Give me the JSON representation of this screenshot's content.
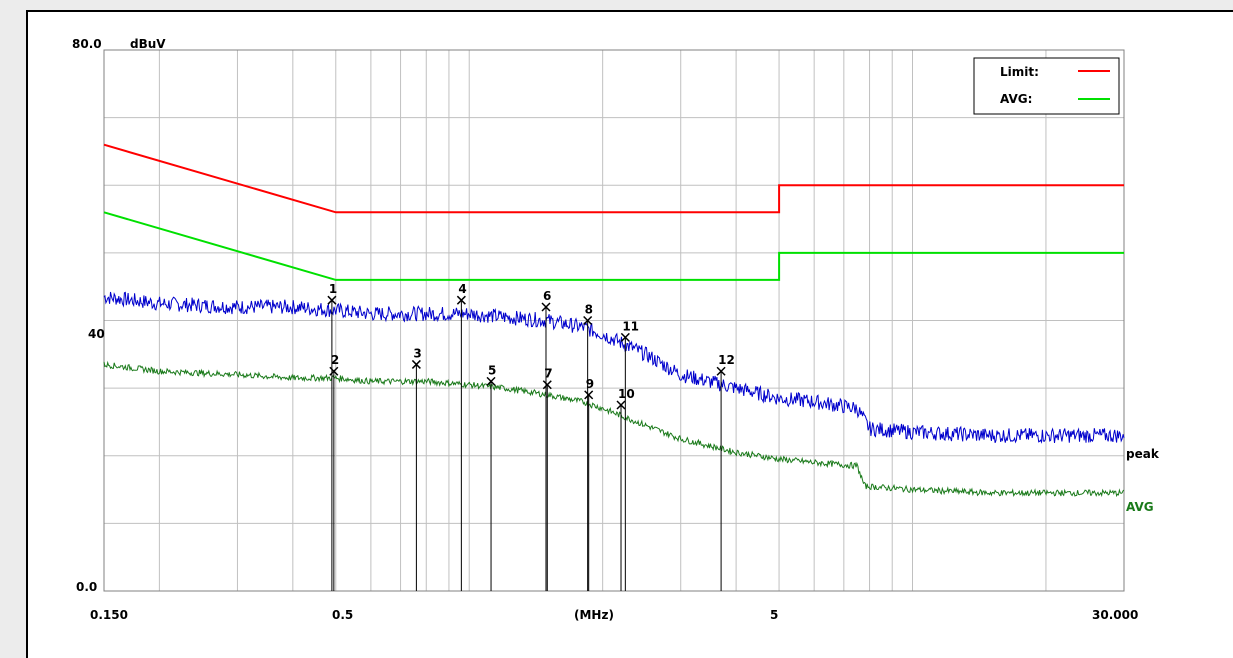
{
  "chart_data": {
    "type": "line",
    "y_unit": "dBuV",
    "x_unit": "(MHz)",
    "x_scale": "log",
    "xlim": [
      0.15,
      30
    ],
    "ylim": [
      0,
      80
    ],
    "y_tick_labels": [
      "80.0",
      "40",
      "0.0"
    ],
    "x_tick_labels": [
      "0.150",
      "0.5",
      "(MHz)",
      "5",
      "30.000"
    ],
    "grid": true,
    "legend_placement": "top-right",
    "legend": [
      {
        "label": "Limit:",
        "color": "#ff0000"
      },
      {
        "label": "AVG:",
        "color": "#00e000"
      }
    ],
    "series": [
      {
        "label": "",
        "color": "#ff0000",
        "points": [
          [
            0.15,
            66
          ],
          [
            0.5,
            56
          ],
          [
            0.5,
            56
          ],
          [
            5,
            56
          ],
          [
            5,
            60
          ],
          [
            30,
            60
          ]
        ]
      },
      {
        "label": "",
        "color": "#00e000",
        "points": [
          [
            0.15,
            56
          ],
          [
            0.5,
            46
          ],
          [
            0.5,
            46
          ],
          [
            5,
            46
          ],
          [
            5,
            50
          ],
          [
            30,
            50
          ]
        ]
      },
      {
        "label": "peak",
        "color": "#0000cc",
        "points": [
          [
            0.15,
            43.5
          ],
          [
            0.2,
            42.5
          ],
          [
            0.3,
            42
          ],
          [
            0.4,
            42
          ],
          [
            0.5,
            41.5
          ],
          [
            0.6,
            41
          ],
          [
            0.8,
            41
          ],
          [
            1.0,
            41
          ],
          [
            1.2,
            40.5
          ],
          [
            1.5,
            40
          ],
          [
            1.8,
            39
          ],
          [
            2.0,
            38
          ],
          [
            2.5,
            35
          ],
          [
            3.0,
            32
          ],
          [
            4.0,
            30
          ],
          [
            5.0,
            28.5
          ],
          [
            6.0,
            28
          ],
          [
            7.5,
            27
          ],
          [
            8.0,
            24
          ],
          [
            10.0,
            23.5
          ],
          [
            15.0,
            23
          ],
          [
            20.0,
            23
          ],
          [
            30.0,
            23
          ]
        ]
      },
      {
        "label": "AVG",
        "color": "#1a7a1a",
        "points": [
          [
            0.15,
            33.5
          ],
          [
            0.2,
            32.5
          ],
          [
            0.3,
            32
          ],
          [
            0.4,
            31.5
          ],
          [
            0.5,
            31.5
          ],
          [
            0.6,
            31
          ],
          [
            0.8,
            31
          ],
          [
            1.0,
            30.5
          ],
          [
            1.2,
            30
          ],
          [
            1.5,
            29
          ],
          [
            1.8,
            28
          ],
          [
            2.0,
            27
          ],
          [
            2.5,
            24.5
          ],
          [
            3.0,
            22.5
          ],
          [
            4.0,
            20.5
          ],
          [
            5.0,
            19.5
          ],
          [
            6.0,
            19
          ],
          [
            7.5,
            18.5
          ],
          [
            7.8,
            15.5
          ],
          [
            10.0,
            15
          ],
          [
            15.0,
            14.5
          ],
          [
            20.0,
            14.5
          ],
          [
            30.0,
            14.5
          ]
        ]
      }
    ],
    "markers": [
      {
        "id": "1",
        "x": 0.49,
        "y": 43
      },
      {
        "id": "2",
        "x": 0.495,
        "y": 32.5
      },
      {
        "id": "3",
        "x": 0.76,
        "y": 33.5
      },
      {
        "id": "4",
        "x": 0.96,
        "y": 43
      },
      {
        "id": "5",
        "x": 1.12,
        "y": 31
      },
      {
        "id": "6",
        "x": 1.49,
        "y": 42
      },
      {
        "id": "7",
        "x": 1.5,
        "y": 30.5
      },
      {
        "id": "8",
        "x": 1.85,
        "y": 40
      },
      {
        "id": "9",
        "x": 1.86,
        "y": 29
      },
      {
        "id": "10",
        "x": 2.2,
        "y": 27.5
      },
      {
        "id": "11",
        "x": 2.25,
        "y": 37.5
      },
      {
        "id": "12",
        "x": 3.7,
        "y": 32.5
      }
    ]
  }
}
